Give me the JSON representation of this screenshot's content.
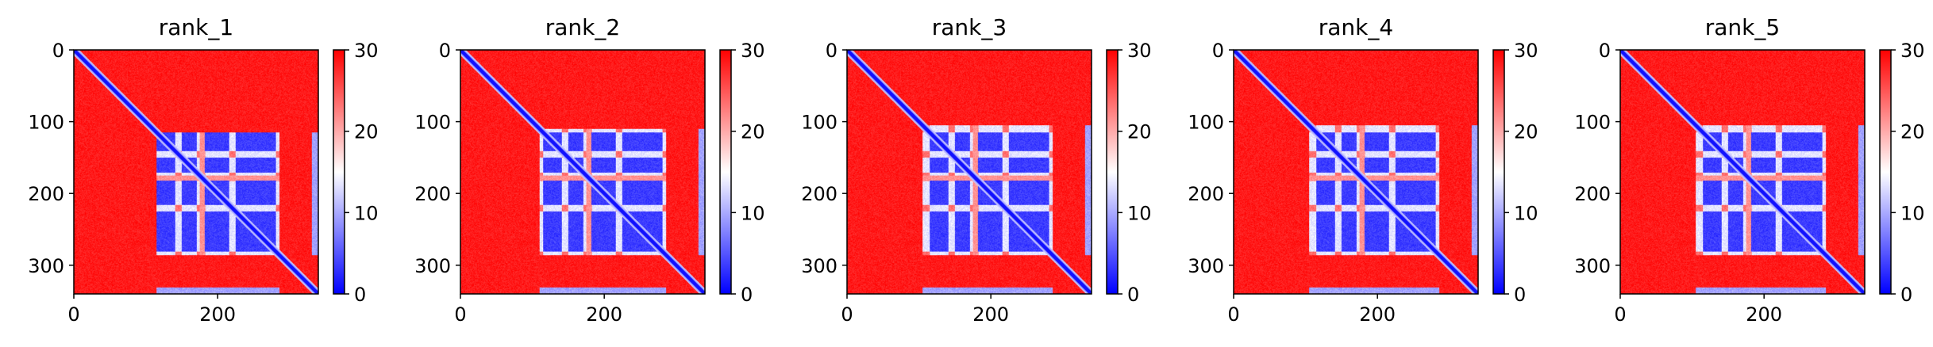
{
  "chart_data": [
    {
      "type": "heatmap",
      "title": "rank_1",
      "xlabel": "",
      "ylabel": "",
      "xlim": [
        0,
        340
      ],
      "ylim": [
        340,
        0
      ],
      "x_ticks": [
        "0",
        "200"
      ],
      "y_ticks": [
        "0",
        "100",
        "200",
        "300"
      ],
      "colorbar": {
        "min": 0,
        "max": 30,
        "ticks": [
          "0",
          "10",
          "20",
          "30"
        ],
        "colormap": "bwr"
      },
      "structure": {
        "diagonal": "low",
        "blocks": [
          [
            115,
            285
          ],
          [
            105,
            115
          ],
          [
            305,
            340
          ]
        ],
        "bands": [
          [
            115,
            140
          ],
          [
            150,
            170
          ],
          [
            182,
            215
          ],
          [
            225,
            280
          ]
        ],
        "gaps": [
          [
            175,
            182
          ],
          [
            305,
            330
          ]
        ],
        "background": "high"
      }
    },
    {
      "type": "heatmap",
      "title": "rank_2",
      "xlabel": "",
      "ylabel": "",
      "xlim": [
        0,
        340
      ],
      "ylim": [
        340,
        0
      ],
      "x_ticks": [
        "0",
        "200"
      ],
      "y_ticks": [
        "0",
        "100",
        "200",
        "300"
      ],
      "colorbar": {
        "min": 0,
        "max": 30,
        "ticks": [
          "0",
          "10",
          "20",
          "30"
        ],
        "colormap": "bwr"
      },
      "structure": {
        "diagonal": "low",
        "blocks": [
          [
            110,
            285
          ]
        ],
        "bands": [
          [
            115,
            140
          ],
          [
            150,
            170
          ],
          [
            182,
            215
          ],
          [
            225,
            280
          ]
        ],
        "gaps": [
          [
            175,
            182
          ]
        ],
        "background": "high"
      }
    },
    {
      "type": "heatmap",
      "title": "rank_3",
      "xlabel": "",
      "ylabel": "",
      "xlim": [
        0,
        340
      ],
      "ylim": [
        340,
        0
      ],
      "x_ticks": [
        "0",
        "200"
      ],
      "y_ticks": [
        "0",
        "100",
        "200",
        "300"
      ],
      "colorbar": {
        "min": 0,
        "max": 30,
        "ticks": [
          "0",
          "10",
          "20",
          "30"
        ],
        "colormap": "bwr"
      },
      "structure": {
        "diagonal": "low",
        "blocks": [
          [
            105,
            285
          ]
        ],
        "bands": [
          [
            115,
            140
          ],
          [
            150,
            170
          ],
          [
            182,
            215
          ],
          [
            225,
            280
          ]
        ],
        "gaps": [
          [
            175,
            182
          ]
        ],
        "background": "high"
      }
    },
    {
      "type": "heatmap",
      "title": "rank_4",
      "xlabel": "",
      "ylabel": "",
      "xlim": [
        0,
        340
      ],
      "ylim": [
        340,
        0
      ],
      "x_ticks": [
        "0",
        "200"
      ],
      "y_ticks": [
        "0",
        "100",
        "200",
        "300"
      ],
      "colorbar": {
        "min": 0,
        "max": 30,
        "ticks": [
          "0",
          "10",
          "20",
          "30"
        ],
        "colormap": "bwr"
      },
      "structure": {
        "diagonal": "low",
        "blocks": [
          [
            105,
            285
          ]
        ],
        "bands": [
          [
            115,
            140
          ],
          [
            150,
            170
          ],
          [
            182,
            215
          ],
          [
            225,
            280
          ]
        ],
        "gaps": [
          [
            175,
            182
          ]
        ],
        "background": "high"
      }
    },
    {
      "type": "heatmap",
      "title": "rank_5",
      "xlabel": "",
      "ylabel": "",
      "xlim": [
        0,
        340
      ],
      "ylim": [
        340,
        0
      ],
      "x_ticks": [
        "0",
        "200"
      ],
      "y_ticks": [
        "0",
        "100",
        "200",
        "300"
      ],
      "colorbar": {
        "min": 0,
        "max": 30,
        "ticks": [
          "0",
          "10",
          "20",
          "30"
        ],
        "colormap": "bwr"
      },
      "structure": {
        "diagonal": "low",
        "blocks": [
          [
            105,
            285
          ]
        ],
        "bands": [
          [
            115,
            140
          ],
          [
            150,
            170
          ],
          [
            182,
            215
          ],
          [
            225,
            280
          ]
        ],
        "gaps": [
          [
            175,
            182
          ]
        ],
        "background": "high"
      }
    }
  ],
  "colors": {
    "low": "#0000ff",
    "mid": "#ffffff",
    "high": "#ff0000",
    "axis": "#000000"
  }
}
